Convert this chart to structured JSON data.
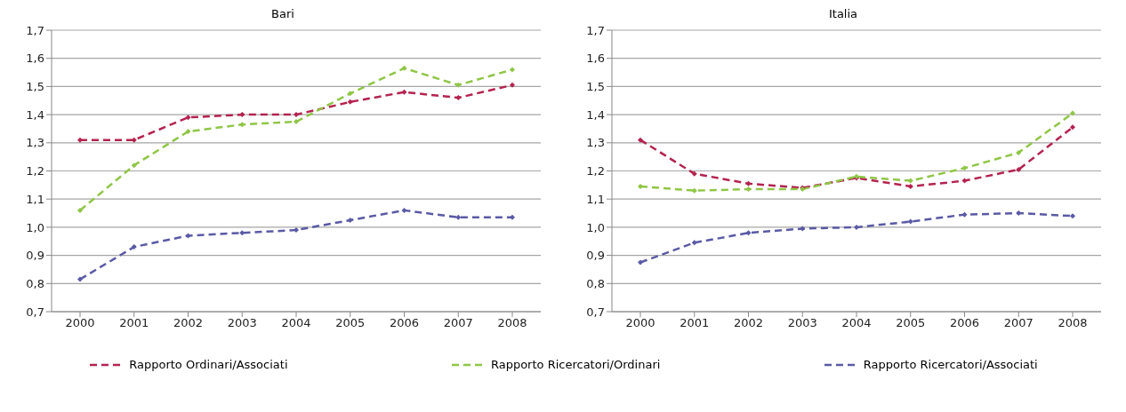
{
  "chart_data": [
    {
      "type": "line",
      "title": "Bari",
      "categories": [
        "2000",
        "2001",
        "2002",
        "2003",
        "2004",
        "2005",
        "2006",
        "2007",
        "2008"
      ],
      "series": [
        {
          "name": "Rapporto Ordinari/Associati",
          "color": "#b5234f",
          "values": [
            1.31,
            1.31,
            1.39,
            1.4,
            1.4,
            1.445,
            1.48,
            1.46,
            1.505
          ]
        },
        {
          "name": "Rapporto Ricercatori/Ordinari",
          "color": "#8fc646",
          "values": [
            1.06,
            1.22,
            1.34,
            1.365,
            1.375,
            1.475,
            1.565,
            1.505,
            1.56
          ]
        },
        {
          "name": "Rapporto Ricercatori/Associati",
          "color": "#5a5aa6",
          "values": [
            0.815,
            0.93,
            0.97,
            0.98,
            0.99,
            1.025,
            1.06,
            1.035,
            1.035
          ]
        }
      ],
      "ylim": [
        0.7,
        1.7
      ],
      "yticks": [
        {
          "value": 0.7,
          "label": "0,7"
        },
        {
          "value": 0.8,
          "label": "0,8"
        },
        {
          "value": 0.9,
          "label": "0,9"
        },
        {
          "value": 1.0,
          "label": "1,0"
        },
        {
          "value": 1.1,
          "label": "1,1"
        },
        {
          "value": 1.2,
          "label": "1,2"
        },
        {
          "value": 1.3,
          "label": "1,3"
        },
        {
          "value": 1.4,
          "label": "1,4"
        },
        {
          "value": 1.5,
          "label": "1,5"
        },
        {
          "value": 1.6,
          "label": "1,6"
        },
        {
          "value": 1.7,
          "label": "1,7"
        }
      ],
      "grid": "y",
      "legend": "bottom",
      "marker": "diamond",
      "line_style": "dashed"
    },
    {
      "type": "line",
      "title": "Italia",
      "categories": [
        "2000",
        "2001",
        "2002",
        "2003",
        "2004",
        "2005",
        "2006",
        "2007",
        "2008"
      ],
      "series": [
        {
          "color": "#b5234f",
          "values": [
            1.31,
            1.19,
            1.155,
            1.14,
            1.175,
            1.145,
            1.165,
            1.205,
            1.355
          ]
        },
        {
          "color": "#8fc646",
          "values": [
            1.145,
            1.13,
            1.135,
            1.135,
            1.18,
            1.165,
            1.21,
            1.265,
            1.405
          ]
        },
        {
          "color": "#5a5aa6",
          "values": [
            0.875,
            0.945,
            0.98,
            0.995,
            1.0,
            1.02,
            1.045,
            1.05,
            1.04
          ]
        }
      ],
      "ylim": [
        0.7,
        1.7
      ],
      "yticks": [
        {
          "value": 0.7,
          "label": "0,7"
        },
        {
          "value": 0.8,
          "label": "0,8"
        },
        {
          "value": 0.9,
          "label": "0,9"
        },
        {
          "value": 1.0,
          "label": "1,0"
        },
        {
          "value": 1.1,
          "label": "1,1"
        },
        {
          "value": 1.2,
          "label": "1,2"
        },
        {
          "value": 1.3,
          "label": "1,3"
        },
        {
          "value": 1.4,
          "label": "1,4"
        },
        {
          "value": 1.5,
          "label": "1,5"
        },
        {
          "value": 1.6,
          "label": "1,6"
        },
        {
          "value": 1.7,
          "label": "1,7"
        }
      ],
      "grid": "y",
      "marker": "diamond",
      "line_style": "dashed"
    }
  ]
}
